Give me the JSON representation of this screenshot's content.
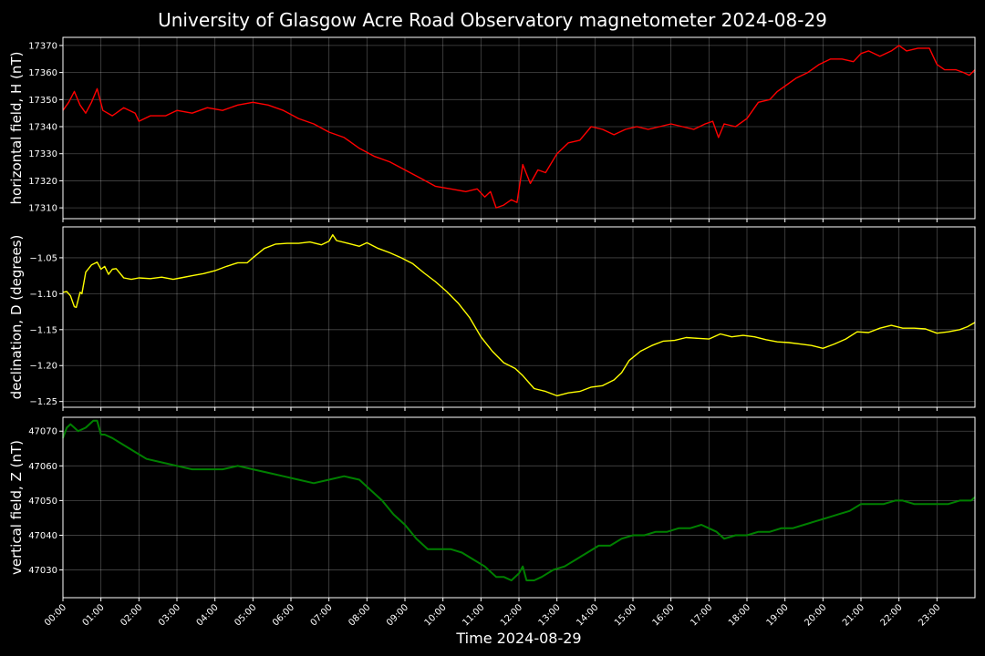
{
  "chart_data": {
    "type": "line",
    "title": "University of Glasgow Acre Road Observatory magnetometer 2024-08-29",
    "xlabel": "Time 2024-08-29",
    "x_tick_labels": [
      "00:00",
      "01:00",
      "02:00",
      "03:00",
      "04:00",
      "05:00",
      "06:00",
      "07:00",
      "08:00",
      "09:00",
      "10:00",
      "11:00",
      "12:00",
      "13:00",
      "14:00",
      "15:00",
      "16:00",
      "17:00",
      "18:00",
      "19:00",
      "20:00",
      "21:00",
      "22:00",
      "23:00"
    ],
    "x_unit": "hours since 00:00",
    "xlim": [
      0,
      24
    ],
    "grid": true,
    "background": "#000000",
    "panels": [
      {
        "name": "H",
        "ylabel": "horizontal field, H (nT)",
        "color": "#ff0000",
        "ylim": [
          17306,
          17373
        ],
        "y_ticks": [
          17310,
          17320,
          17330,
          17340,
          17350,
          17360,
          17370
        ],
        "y_tick_labels": [
          "17310",
          "17320",
          "17330",
          "17340",
          "17350",
          "17360",
          "17370"
        ],
        "x": [
          0,
          0.15,
          0.3,
          0.45,
          0.6,
          0.75,
          0.9,
          1.05,
          1.3,
          1.6,
          1.9,
          2.0,
          2.3,
          2.7,
          3.0,
          3.4,
          3.8,
          4.2,
          4.6,
          5.0,
          5.4,
          5.8,
          6.2,
          6.6,
          7.0,
          7.4,
          7.8,
          8.2,
          8.6,
          9.0,
          9.4,
          9.8,
          10.2,
          10.6,
          10.9,
          11.1,
          11.25,
          11.4,
          11.6,
          11.8,
          11.95,
          12.1,
          12.3,
          12.5,
          12.7,
          13.0,
          13.3,
          13.6,
          13.9,
          14.2,
          14.5,
          14.8,
          15.1,
          15.4,
          15.7,
          16.0,
          16.3,
          16.6,
          16.9,
          17.1,
          17.25,
          17.4,
          17.7,
          18.0,
          18.3,
          18.6,
          18.8,
          19.0,
          19.3,
          19.6,
          19.9,
          20.2,
          20.5,
          20.8,
          21.0,
          21.2,
          21.5,
          21.8,
          22.0,
          22.2,
          22.5,
          22.8,
          23.0,
          23.2,
          23.5,
          23.7,
          23.85,
          24.0
        ],
        "values": [
          17346,
          17349,
          17353,
          17348,
          17345,
          17349,
          17354,
          17346,
          17344,
          17347,
          17345,
          17342,
          17344,
          17344,
          17346,
          17345,
          17347,
          17346,
          17348,
          17349,
          17348,
          17346,
          17343,
          17341,
          17338,
          17336,
          17332,
          17329,
          17327,
          17324,
          17321,
          17318,
          17317,
          17316,
          17317,
          17314,
          17316,
          17310,
          17311,
          17313,
          17312,
          17326,
          17319,
          17324,
          17323,
          17330,
          17334,
          17335,
          17340,
          17339,
          17337,
          17339,
          17340,
          17339,
          17340,
          17341,
          17340,
          17339,
          17341,
          17342,
          17336,
          17341,
          17340,
          17343,
          17349,
          17350,
          17353,
          17355,
          17358,
          17360,
          17363,
          17365,
          17365,
          17364,
          17367,
          17368,
          17366,
          17368,
          17370,
          17368,
          17369,
          17369,
          17363,
          17361,
          17361,
          17360,
          17359,
          17361
        ]
      },
      {
        "name": "D",
        "ylabel": "declination, D (degrees)",
        "color": "#ffff00",
        "ylim": [
          -1.258,
          -1.007
        ],
        "y_ticks": [
          -1.25,
          -1.2,
          -1.15,
          -1.1,
          -1.05
        ],
        "y_tick_labels": [
          "−1.25",
          "−1.20",
          "−1.15",
          "−1.10",
          "−1.05"
        ],
        "x": [
          0,
          0.1,
          0.2,
          0.3,
          0.35,
          0.45,
          0.5,
          0.6,
          0.75,
          0.9,
          1.0,
          1.1,
          1.2,
          1.3,
          1.4,
          1.6,
          1.8,
          2.0,
          2.3,
          2.6,
          2.9,
          3.1,
          3.4,
          3.7,
          4.0,
          4.3,
          4.6,
          4.85,
          5.0,
          5.3,
          5.6,
          5.9,
          6.2,
          6.5,
          6.8,
          7.0,
          7.1,
          7.2,
          7.5,
          7.8,
          8.0,
          8.3,
          8.6,
          8.9,
          9.2,
          9.5,
          9.8,
          10.1,
          10.4,
          10.7,
          11.0,
          11.3,
          11.6,
          11.9,
          12.1,
          12.4,
          12.7,
          13.0,
          13.3,
          13.6,
          13.9,
          14.2,
          14.5,
          14.7,
          14.9,
          15.2,
          15.5,
          15.8,
          16.1,
          16.4,
          16.7,
          17.0,
          17.3,
          17.6,
          17.9,
          18.2,
          18.5,
          18.8,
          19.1,
          19.4,
          19.7,
          20.0,
          20.3,
          20.6,
          20.9,
          21.2,
          21.5,
          21.8,
          22.1,
          22.4,
          22.7,
          23.0,
          23.3,
          23.6,
          23.8,
          24.0
        ],
        "values": [
          -1.098,
          -1.097,
          -1.103,
          -1.118,
          -1.119,
          -1.098,
          -1.1,
          -1.07,
          -1.06,
          -1.056,
          -1.066,
          -1.062,
          -1.073,
          -1.066,
          -1.065,
          -1.078,
          -1.08,
          -1.078,
          -1.079,
          -1.077,
          -1.08,
          -1.078,
          -1.075,
          -1.072,
          -1.068,
          -1.062,
          -1.057,
          -1.057,
          -1.05,
          -1.037,
          -1.031,
          -1.03,
          -1.03,
          -1.028,
          -1.032,
          -1.027,
          -1.018,
          -1.026,
          -1.03,
          -1.034,
          -1.029,
          -1.037,
          -1.043,
          -1.05,
          -1.058,
          -1.071,
          -1.083,
          -1.097,
          -1.113,
          -1.133,
          -1.16,
          -1.18,
          -1.196,
          -1.204,
          -1.214,
          -1.232,
          -1.236,
          -1.242,
          -1.238,
          -1.236,
          -1.23,
          -1.228,
          -1.22,
          -1.21,
          -1.193,
          -1.18,
          -1.172,
          -1.166,
          -1.165,
          -1.161,
          -1.162,
          -1.163,
          -1.156,
          -1.16,
          -1.158,
          -1.16,
          -1.164,
          -1.167,
          -1.168,
          -1.17,
          -1.172,
          -1.176,
          -1.17,
          -1.163,
          -1.153,
          -1.154,
          -1.148,
          -1.144,
          -1.148,
          -1.148,
          -1.149,
          -1.155,
          -1.153,
          -1.15,
          -1.146,
          -1.14
        ]
      },
      {
        "name": "Z",
        "ylabel": "vertical field, Z (nT)",
        "color": "#008000",
        "ylim": [
          47022,
          47074
        ],
        "y_ticks": [
          47030,
          47040,
          47050,
          47060,
          47070
        ],
        "y_tick_labels": [
          "47030",
          "47040",
          "47050",
          "47060",
          "47070"
        ],
        "x": [
          0,
          0.1,
          0.2,
          0.3,
          0.4,
          0.6,
          0.8,
          0.9,
          1.0,
          1.1,
          1.3,
          1.6,
          1.9,
          2.2,
          2.6,
          3.0,
          3.4,
          3.8,
          4.2,
          4.6,
          5.0,
          5.4,
          5.8,
          6.2,
          6.6,
          7.0,
          7.4,
          7.8,
          8.1,
          8.4,
          8.7,
          9.0,
          9.3,
          9.6,
          9.9,
          10.2,
          10.5,
          10.8,
          11.1,
          11.4,
          11.6,
          11.8,
          12.0,
          12.1,
          12.2,
          12.4,
          12.6,
          12.9,
          13.2,
          13.5,
          13.8,
          14.1,
          14.4,
          14.7,
          15.0,
          15.3,
          15.6,
          15.9,
          16.2,
          16.5,
          16.8,
          17.0,
          17.2,
          17.4,
          17.7,
          18.0,
          18.3,
          18.6,
          18.9,
          19.2,
          19.5,
          19.8,
          20.1,
          20.4,
          20.7,
          21.0,
          21.3,
          21.6,
          21.9,
          22.1,
          22.4,
          22.7,
          23.0,
          23.3,
          23.6,
          23.9,
          24.0
        ],
        "values": [
          47068,
          47071,
          47072,
          47071,
          47070,
          47071,
          47073,
          47073,
          47069,
          47069,
          47068,
          47066,
          47064,
          47062,
          47061,
          47060,
          47059,
          47059,
          47059,
          47060,
          47059,
          47058,
          47057,
          47056,
          47055,
          47056,
          47057,
          47056,
          47053,
          47050,
          47046,
          47043,
          47039,
          47036,
          47036,
          47036,
          47035,
          47033,
          47031,
          47028,
          47028,
          47027,
          47029,
          47031,
          47027,
          47027,
          47028,
          47030,
          47031,
          47033,
          47035,
          47037,
          47037,
          47039,
          47040,
          47040,
          47041,
          47041,
          47042,
          47042,
          47043,
          47042,
          47041,
          47039,
          47040,
          47040,
          47041,
          47041,
          47042,
          47042,
          47043,
          47044,
          47045,
          47046,
          47047,
          47049,
          47049,
          47049,
          47050,
          47050,
          47049,
          47049,
          47049,
          47049,
          47050,
          47050,
          47051
        ]
      }
    ]
  }
}
